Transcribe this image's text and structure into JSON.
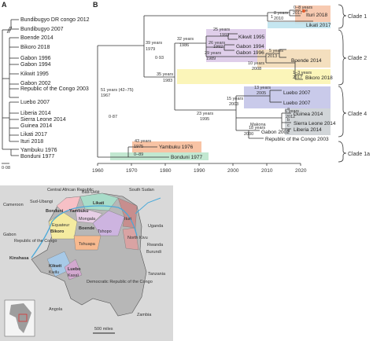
{
  "panel_a": {
    "label": "A",
    "scale": "0·08",
    "taxa": [
      "Bundibugyo DR congo 2012",
      "Bundibugyo 2007",
      "Boende 2014",
      "Bikoro 2018",
      "Gabon 1996",
      "Gabon 1994",
      "Kikwit 1995",
      "Gabon 2002",
      "Republic of the Congo 2003",
      "Luebo 2007",
      "Liberia 2014",
      "Sierra Leone 2014",
      "Guinea 2014",
      "Likati 2017",
      "Ituri 2018",
      "Yambuku 1976",
      "Bonduni 1977"
    ]
  },
  "panel_b": {
    "label": "B",
    "axis_ticks": [
      "1960",
      "1970",
      "1980",
      "1990",
      "2000",
      "2010",
      "2020"
    ],
    "clade_labels": [
      "Clade 1",
      "Clade 2",
      "Clade 3",
      "Clade 4",
      "Clade 1a"
    ],
    "tips": [
      "Ituri 2018",
      "Likati 2017",
      "Kikwit 1995",
      "Gabon 1994",
      "Gabon 1996",
      "Boende 2014",
      "Bikoro 2018",
      "Luebo 2007",
      "Luebo 2007",
      "Guinea 2014",
      "Sierra Leone 2014",
      "Liberia 2014",
      "Gabon 2002",
      "Republic of the Congo 2003",
      "Yambuku 1976",
      "Bonduni 1977"
    ],
    "node_labels": [
      "0–8 years",
      "2017",
      "8 years",
      "2010",
      "51 years (42–75)",
      "1967",
      "39 years",
      "1979",
      "35 years",
      "1983",
      "32 years",
      "1986",
      "25 years",
      "1993",
      "26 years",
      "1992",
      "29 years",
      "1989",
      "10 years",
      "2008",
      "5 years",
      "2013",
      "1–3 years",
      "2017",
      "23 years",
      "1995",
      "13 years",
      "2005",
      "15 years",
      "2003",
      "6 years",
      "2012",
      "18 years",
      "2000",
      "43 years",
      "1975",
      "0–89",
      "0·93",
      "0·87",
      "1",
      "Makona",
      "a",
      "b",
      "c",
      "d",
      "e"
    ]
  },
  "panel_c": {
    "label": "C",
    "countries": [
      "Central African Republic",
      "South Sudan",
      "Cameroon",
      "Gabon",
      "Republic of the Congo",
      "Uganda",
      "Rwanda",
      "Burundi",
      "Tanzania",
      "Angola",
      "Zambia",
      "Democratic Republic of the Congo"
    ],
    "provinces": [
      "Sud-Ubangi",
      "Bas-Uélé",
      "Mongala",
      "Equateur",
      "Tshopo",
      "Ituri",
      "North Kivu",
      "Tshuapa",
      "Kwilu",
      "Kasaï"
    ],
    "cities": [
      "Bonduni",
      "Yambuku",
      "Likati",
      "Boende",
      "Bikoro",
      "Kinshasa",
      "Kikwit",
      "Luebo"
    ],
    "scale_bar": "500 miles"
  }
}
